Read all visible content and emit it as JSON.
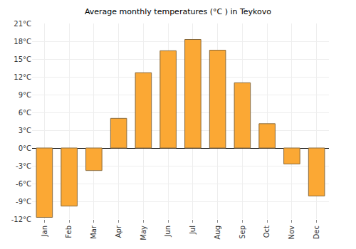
{
  "chart_data": {
    "type": "bar",
    "title": "Average monthly temperatures (°C ) in Teykovo",
    "categories": [
      "Jan",
      "Feb",
      "Mar",
      "Apr",
      "May",
      "Jun",
      "Jul",
      "Aug",
      "Sep",
      "Oct",
      "Nov",
      "Dec"
    ],
    "values": [
      -11.7,
      -9.8,
      -3.8,
      5.0,
      12.7,
      16.4,
      18.3,
      16.5,
      11.0,
      4.1,
      -2.7,
      -8.1
    ],
    "color": "#fba834",
    "ylim": [
      -12,
      21
    ],
    "yticks": [
      {
        "value": -12,
        "label": "-12°C"
      },
      {
        "value": -9,
        "label": "-9°C"
      },
      {
        "value": -6,
        "label": "-6°C"
      },
      {
        "value": -3,
        "label": "-3°C"
      },
      {
        "value": 0,
        "label": "0°C"
      },
      {
        "value": 3,
        "label": "3°C"
      },
      {
        "value": 6,
        "label": "6°C"
      },
      {
        "value": 9,
        "label": "9°C"
      },
      {
        "value": 12,
        "label": "12°C"
      },
      {
        "value": 15,
        "label": "15°C"
      },
      {
        "value": 18,
        "label": "18°C"
      },
      {
        "value": 21,
        "label": "21°C"
      }
    ],
    "grid": true
  }
}
